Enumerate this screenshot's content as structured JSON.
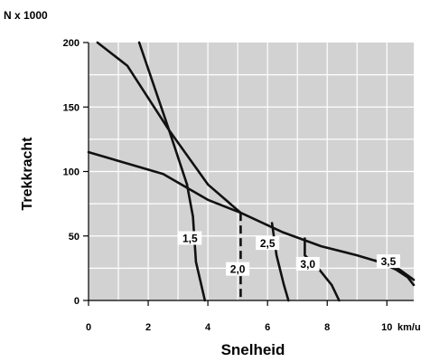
{
  "chart_data": {
    "type": "line",
    "y_unit_label": "N x 1000",
    "x_unit_label": "km/u",
    "xlabel": "Snelheid",
    "ylabel": "Trekkracht",
    "xlim": [
      0,
      10.9
    ],
    "ylim": [
      0,
      200
    ],
    "x_ticks": [
      "0",
      "2",
      "4",
      "6",
      "8",
      "10"
    ],
    "y_ticks": [
      "0",
      "50",
      "100",
      "150",
      "200"
    ],
    "grid": true,
    "traction_curves": [
      {
        "x": [
          0.3,
          1.3,
          2.7,
          4.0,
          5.1,
          6.5,
          7.8,
          9.0,
          10.3,
          10.9
        ],
        "y": [
          200,
          182,
          132,
          90,
          68,
          53,
          42,
          35,
          26,
          16
        ]
      },
      {
        "x": [
          0.0,
          2.5,
          4.0,
          5.1
        ],
        "y": [
          115,
          98,
          78,
          68
        ]
      },
      {
        "x": [
          1.7,
          2.7,
          3.3
        ],
        "y": [
          200,
          132,
          90
        ]
      }
    ],
    "gear_curves": [
      {
        "label": "1,5",
        "dashed": false,
        "x": [
          3.3,
          3.5,
          3.6,
          3.9
        ],
        "y": [
          90,
          65,
          30,
          0
        ]
      },
      {
        "label": "2,0",
        "dashed": true,
        "x": [
          5.1,
          5.1,
          5.1
        ],
        "y": [
          68,
          30,
          0
        ]
      },
      {
        "label": "2,5",
        "dashed": false,
        "x": [
          6.15,
          6.3,
          6.55,
          6.7
        ],
        "y": [
          60,
          35,
          12,
          0
        ]
      },
      {
        "label": "3,0",
        "dashed": false,
        "x": [
          7.25,
          7.25,
          7.7,
          8.15,
          8.4
        ],
        "y": [
          48,
          35,
          25,
          12,
          0
        ]
      },
      {
        "label": "3,5",
        "dashed": false,
        "x": [
          9.6,
          10.3,
          10.7,
          10.9
        ],
        "y": [
          31,
          24,
          18,
          12
        ]
      }
    ]
  }
}
